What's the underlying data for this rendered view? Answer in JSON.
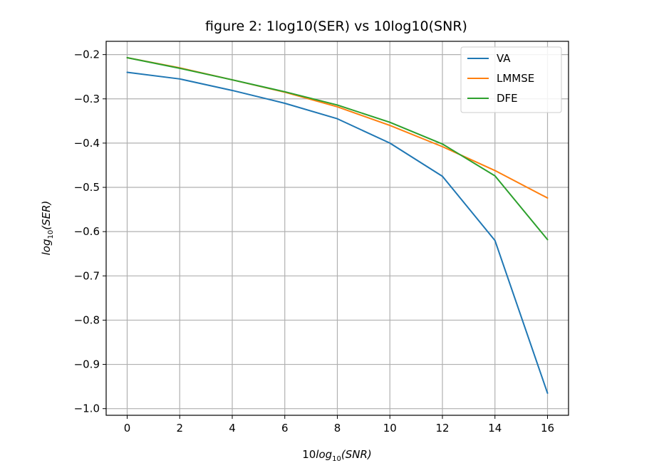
{
  "chart_data": {
    "type": "line",
    "title": "figure 2: 1log10(SER) vs 10log10(SNR)",
    "xlabel": {
      "pre": "10",
      "main": "log",
      "sub": "10",
      "post": "(SNR)"
    },
    "ylabel": {
      "main": "log",
      "sub": "10",
      "post": "(SER)"
    },
    "xlim": [
      -0.8,
      16.8
    ],
    "ylim": [
      -1.015,
      -0.17
    ],
    "xticks": [
      0,
      2,
      4,
      6,
      8,
      10,
      12,
      14,
      16
    ],
    "yticks": [
      -1.0,
      -0.9,
      -0.8,
      -0.7,
      -0.6,
      -0.5,
      -0.4,
      -0.3,
      -0.2
    ],
    "ytick_labels": [
      "−1.0",
      "−0.9",
      "−0.8",
      "−0.7",
      "−0.6",
      "−0.5",
      "−0.4",
      "−0.3",
      "−0.2"
    ],
    "grid": true,
    "legend_position": "top-right",
    "x": [
      0,
      2,
      4,
      6,
      8,
      10,
      12,
      14,
      16
    ],
    "series": [
      {
        "name": "VA",
        "color": "#1f77b4",
        "values": [
          -0.24,
          -0.255,
          -0.281,
          -0.31,
          -0.345,
          -0.4,
          -0.475,
          -0.62,
          -0.965
        ]
      },
      {
        "name": "LMMSE",
        "color": "#ff7f0e",
        "values": [
          -0.207,
          -0.23,
          -0.257,
          -0.285,
          -0.318,
          -0.36,
          -0.408,
          -0.462,
          -0.524
        ]
      },
      {
        "name": "DFE",
        "color": "#2ca02c",
        "values": [
          -0.207,
          -0.231,
          -0.257,
          -0.284,
          -0.314,
          -0.353,
          -0.402,
          -0.474,
          -0.618
        ]
      }
    ]
  }
}
